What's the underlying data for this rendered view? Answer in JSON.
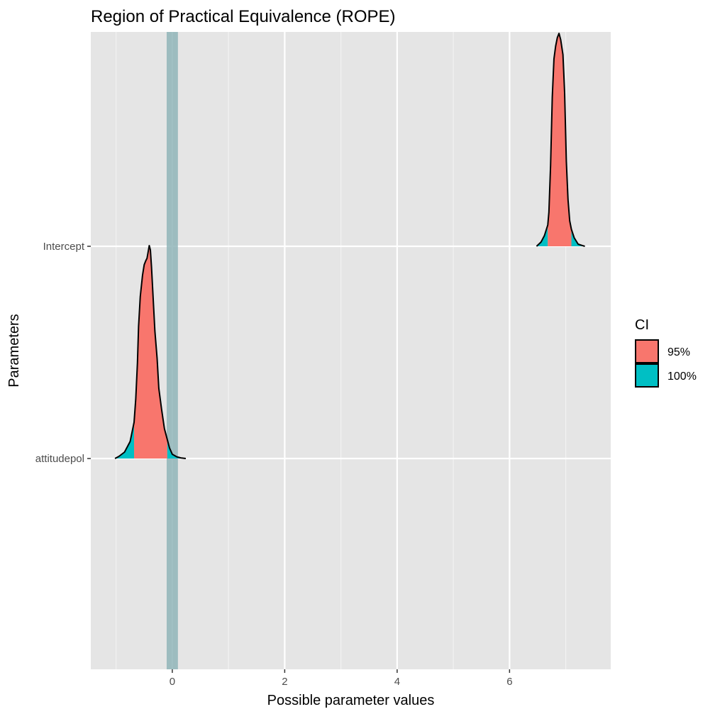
{
  "chart_data": {
    "type": "area",
    "title": "Region of Practical Equivalence (ROPE)",
    "xlabel": "Possible parameter values",
    "ylabel": "Parameters",
    "xlim": [
      -1.45,
      7.8
    ],
    "x_ticks": [
      0,
      2,
      4,
      6
    ],
    "x_tick_labels": [
      "0",
      "2",
      "4",
      "6"
    ],
    "categories": [
      "attitudepol",
      "Intercept"
    ],
    "rope": {
      "low": -0.1,
      "high": 0.1,
      "color": "#91b5b9"
    },
    "grid": true,
    "legend": {
      "title": "CI",
      "position": "right",
      "entries": [
        {
          "label": "95%",
          "color": "#F8766D"
        },
        {
          "label": "100%",
          "color": "#00BFC4"
        }
      ]
    },
    "series": [
      {
        "category": "attitudepol",
        "x_min": -1.02,
        "x_max": 0.24,
        "ci95_low": -0.68,
        "ci95_high": -0.09,
        "density": [
          [
            -1.02,
            0.0
          ],
          [
            -0.95,
            0.01
          ],
          [
            -0.85,
            0.03
          ],
          [
            -0.75,
            0.08
          ],
          [
            -0.68,
            0.17
          ],
          [
            -0.65,
            0.28
          ],
          [
            -0.62,
            0.45
          ],
          [
            -0.6,
            0.62
          ],
          [
            -0.57,
            0.76
          ],
          [
            -0.53,
            0.86
          ],
          [
            -0.5,
            0.91
          ],
          [
            -0.47,
            0.93
          ],
          [
            -0.45,
            0.94
          ],
          [
            -0.43,
            0.97
          ],
          [
            -0.41,
            1.0
          ],
          [
            -0.39,
            0.98
          ],
          [
            -0.37,
            0.9
          ],
          [
            -0.34,
            0.75
          ],
          [
            -0.31,
            0.6
          ],
          [
            -0.27,
            0.47
          ],
          [
            -0.24,
            0.33
          ],
          [
            -0.19,
            0.23
          ],
          [
            -0.14,
            0.14
          ],
          [
            -0.09,
            0.09
          ],
          [
            -0.05,
            0.05
          ],
          [
            0.0,
            0.02
          ],
          [
            0.08,
            0.008
          ],
          [
            0.15,
            0.003
          ],
          [
            0.24,
            0.0
          ]
        ]
      },
      {
        "category": "Intercept",
        "x_min": 6.48,
        "x_max": 7.34,
        "ci95_low": 6.68,
        "ci95_high": 7.1,
        "density": [
          [
            6.48,
            0.0
          ],
          [
            6.56,
            0.02
          ],
          [
            6.62,
            0.05
          ],
          [
            6.68,
            0.1
          ],
          [
            6.7,
            0.16
          ],
          [
            6.73,
            0.38
          ],
          [
            6.76,
            0.7
          ],
          [
            6.79,
            0.88
          ],
          [
            6.82,
            0.94
          ],
          [
            6.85,
            0.98
          ],
          [
            6.88,
            1.0
          ],
          [
            6.91,
            0.97
          ],
          [
            6.95,
            0.9
          ],
          [
            6.98,
            0.72
          ],
          [
            7.01,
            0.4
          ],
          [
            7.04,
            0.22
          ],
          [
            7.07,
            0.12
          ],
          [
            7.1,
            0.08
          ],
          [
            7.15,
            0.04
          ],
          [
            7.22,
            0.01
          ],
          [
            7.3,
            0.003
          ],
          [
            7.34,
            0.0
          ]
        ]
      }
    ]
  }
}
